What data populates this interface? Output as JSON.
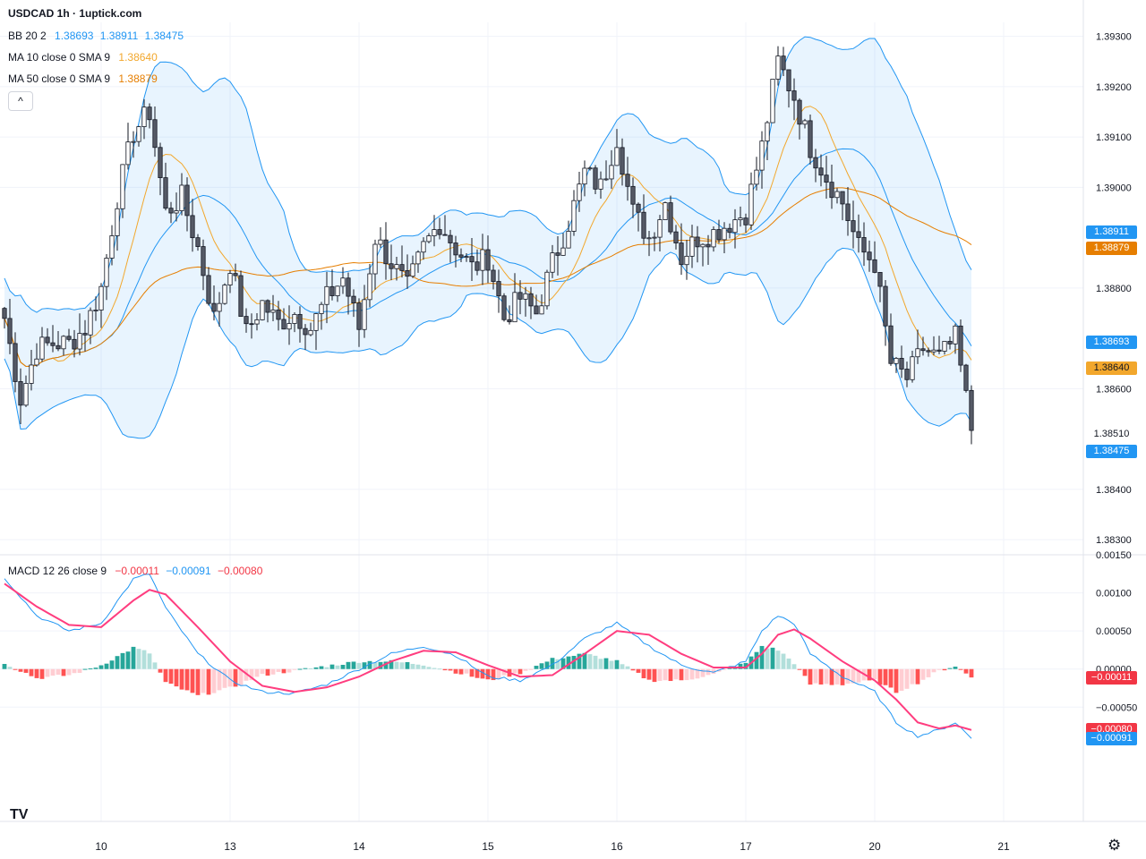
{
  "header": {
    "title": "USDCAD 1h · 1uptick.com"
  },
  "legend": {
    "bb": {
      "label": "BB 20 2",
      "values": [
        "1.38693",
        "1.38911",
        "1.38475"
      ],
      "color": "#2196f3"
    },
    "ma10": {
      "label": "MA 10 close 0 SMA 9",
      "value": "1.38640",
      "color": "#f2a72c"
    },
    "ma50": {
      "label": "MA 50 close 0 SMA 9",
      "value": "1.38879",
      "color": "#e67e00"
    },
    "macd": {
      "label": "MACD 12 26 close 9",
      "values": [
        "−0.00011",
        "−0.00091",
        "−0.00080"
      ],
      "colors": [
        "#f23645",
        "#2196f3",
        "#f23645"
      ]
    }
  },
  "controls": {
    "collapse_icon": "^"
  },
  "price_axis": {
    "ticks": [
      "1.39300",
      "1.39200",
      "1.39100",
      "1.39000",
      "1.38800",
      "1.38600",
      "1.38400",
      "1.38300"
    ],
    "tick_values": [
      1.393,
      1.392,
      1.391,
      1.39,
      1.388,
      1.386,
      1.384,
      1.383
    ],
    "tags": [
      {
        "text": "1.38911",
        "value": 1.38911,
        "bg": "#2196f3",
        "fg": "#ffffff"
      },
      {
        "text": "1.38879",
        "value": 1.38879,
        "bg": "#e67e00",
        "fg": "#ffffff"
      },
      {
        "text": "1.38693",
        "value": 1.38693,
        "bg": "#2196f3",
        "fg": "#ffffff"
      },
      {
        "text": "1.38640",
        "value": 1.3864,
        "bg": "#f2a72c",
        "fg": "#131722"
      },
      {
        "text": "1.38510",
        "value": 1.3851,
        "bg": "#ffffff",
        "fg": "#131722"
      },
      {
        "text": "1.38475",
        "value": 1.38475,
        "bg": "#2196f3",
        "fg": "#ffffff"
      }
    ]
  },
  "macd_axis": {
    "ticks": [
      "0.00150",
      "0.00100",
      "0.00050",
      "0.00000",
      "−0.00050"
    ],
    "tick_values": [
      0.0015,
      0.001,
      0.0005,
      0,
      -0.0005
    ],
    "tags": [
      {
        "text": "−0.00011",
        "value": -0.00011,
        "bg": "#f23645"
      },
      {
        "text": "−0.00080",
        "value": -0.0008,
        "bg": "#f23645"
      },
      {
        "text": "−0.00091",
        "value": -0.00091,
        "bg": "#2196f3"
      }
    ]
  },
  "time_axis": {
    "labels": [
      "10",
      "13",
      "14",
      "15",
      "16",
      "17",
      "20",
      "21"
    ],
    "positions": [
      18,
      42,
      66,
      90,
      114,
      138,
      162,
      186
    ]
  },
  "branding": {
    "logo": "TV",
    "settings_icon": "gear-icon"
  },
  "chart_data": {
    "type": "candlestick",
    "symbol": "USDCAD",
    "interval": "1h",
    "ylim": [
      1.3827,
      1.3931
    ],
    "macd_ylim": [
      -0.002,
      0.0015
    ],
    "grid": true,
    "close_anchors": [
      [
        0,
        1.3874
      ],
      [
        3,
        1.3858
      ],
      [
        6,
        1.3868
      ],
      [
        9,
        1.3869
      ],
      [
        12,
        1.3869
      ],
      [
        15,
        1.3872
      ],
      [
        18,
        1.388
      ],
      [
        21,
        1.3898
      ],
      [
        24,
        1.3911
      ],
      [
        27,
        1.3915
      ],
      [
        30,
        1.3895
      ],
      [
        33,
        1.3898
      ],
      [
        36,
        1.3888
      ],
      [
        39,
        1.3874
      ],
      [
        42,
        1.3885
      ],
      [
        45,
        1.3871
      ],
      [
        48,
        1.3877
      ],
      [
        51,
        1.3873
      ],
      [
        54,
        1.3875
      ],
      [
        57,
        1.3872
      ],
      [
        60,
        1.3878
      ],
      [
        63,
        1.3882
      ],
      [
        66,
        1.3872
      ],
      [
        69,
        1.389
      ],
      [
        72,
        1.3885
      ],
      [
        75,
        1.388
      ],
      [
        78,
        1.3888
      ],
      [
        81,
        1.3893
      ],
      [
        84,
        1.3888
      ],
      [
        87,
        1.3884
      ],
      [
        90,
        1.3886
      ],
      [
        93,
        1.3874
      ],
      [
        96,
        1.3878
      ],
      [
        99,
        1.3875
      ],
      [
        102,
        1.3885
      ],
      [
        105,
        1.3893
      ],
      [
        108,
        1.3903
      ],
      [
        111,
        1.39
      ],
      [
        114,
        1.391
      ],
      [
        117,
        1.3895
      ],
      [
        120,
        1.389
      ],
      [
        123,
        1.3897
      ],
      [
        126,
        1.3886
      ],
      [
        129,
        1.389
      ],
      [
        132,
        1.3891
      ],
      [
        135,
        1.3893
      ],
      [
        138,
        1.3895
      ],
      [
        141,
        1.3908
      ],
      [
        144,
        1.3925
      ],
      [
        147,
        1.3918
      ],
      [
        150,
        1.3908
      ],
      [
        153,
        1.3902
      ],
      [
        156,
        1.3897
      ],
      [
        159,
        1.3888
      ],
      [
        162,
        1.3885
      ],
      [
        165,
        1.3865
      ],
      [
        168,
        1.3862
      ],
      [
        171,
        1.3868
      ],
      [
        174,
        1.3866
      ],
      [
        177,
        1.387
      ],
      [
        180,
        1.3852
      ]
    ],
    "macd_anchors": [
      [
        0,
        0.0012
      ],
      [
        6,
        0.0007
      ],
      [
        12,
        0.0005
      ],
      [
        18,
        0.0006
      ],
      [
        24,
        0.00118
      ],
      [
        27,
        0.00125
      ],
      [
        30,
        0.0008
      ],
      [
        36,
        0.0002
      ],
      [
        42,
        -0.00015
      ],
      [
        48,
        -0.0003
      ],
      [
        54,
        -0.00032
      ],
      [
        60,
        -0.0002
      ],
      [
        66,
        0.0
      ],
      [
        72,
        0.0002
      ],
      [
        78,
        0.0003
      ],
      [
        84,
        0.00018
      ],
      [
        90,
        -0.0001
      ],
      [
        96,
        -0.00015
      ],
      [
        102,
        5e-05
      ],
      [
        108,
        0.0004
      ],
      [
        114,
        0.0006
      ],
      [
        120,
        0.0003
      ],
      [
        126,
        5e-05
      ],
      [
        132,
        -5e-05
      ],
      [
        138,
        0.0001
      ],
      [
        141,
        0.0005
      ],
      [
        144,
        0.0007
      ],
      [
        147,
        0.0006
      ],
      [
        150,
        0.0002
      ],
      [
        156,
        -0.0001
      ],
      [
        162,
        -0.0003
      ],
      [
        166,
        -0.0007
      ],
      [
        170,
        -0.00088
      ],
      [
        174,
        -0.0008
      ],
      [
        177,
        -0.0007
      ],
      [
        180,
        -0.00091
      ]
    ],
    "signal_anchors": [
      [
        0,
        0.00112
      ],
      [
        6,
        0.00082
      ],
      [
        12,
        0.00058
      ],
      [
        18,
        0.00055
      ],
      [
        24,
        0.0009
      ],
      [
        27,
        0.00104
      ],
      [
        30,
        0.00098
      ],
      [
        36,
        0.00055
      ],
      [
        42,
        0.0001
      ],
      [
        48,
        -0.00022
      ],
      [
        54,
        -0.0003
      ],
      [
        60,
        -0.00024
      ],
      [
        66,
        -0.0001
      ],
      [
        72,
        0.0001
      ],
      [
        78,
        0.00024
      ],
      [
        84,
        0.00022
      ],
      [
        90,
        5e-05
      ],
      [
        96,
        -0.0001
      ],
      [
        102,
        -8e-05
      ],
      [
        108,
        0.0002
      ],
      [
        114,
        0.0005
      ],
      [
        120,
        0.00045
      ],
      [
        126,
        0.0002
      ],
      [
        132,
        2e-05
      ],
      [
        138,
        2e-05
      ],
      [
        141,
        0.0002
      ],
      [
        144,
        0.00045
      ],
      [
        147,
        0.00052
      ],
      [
        150,
        0.0004
      ],
      [
        156,
        0.0001
      ],
      [
        162,
        -0.00015
      ],
      [
        166,
        -0.0004
      ],
      [
        170,
        -0.0007
      ],
      [
        174,
        -0.00078
      ],
      [
        177,
        -0.00074
      ],
      [
        180,
        -0.0008
      ]
    ],
    "bars": 181
  }
}
